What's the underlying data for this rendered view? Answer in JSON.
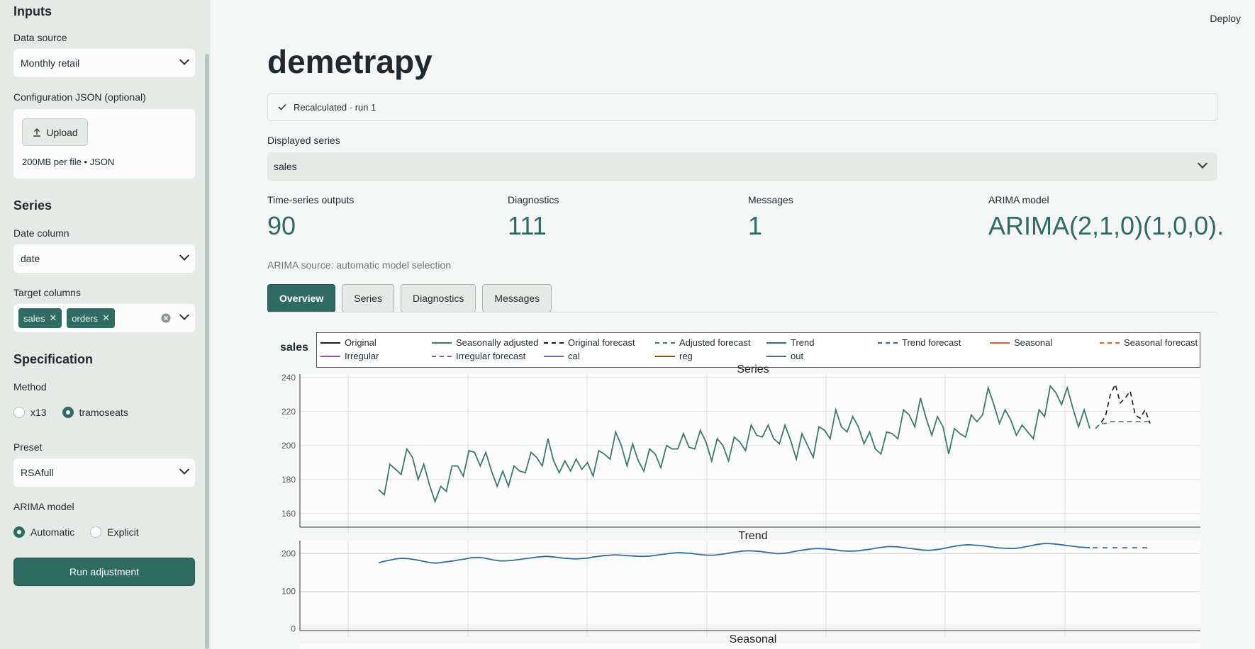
{
  "sidebar": {
    "inputs_heading": "Inputs",
    "data_source_label": "Data source",
    "data_source_value": "Monthly retail",
    "config_label": "Configuration JSON (optional)",
    "upload_label": "Upload",
    "upload_note": "200MB per file • JSON",
    "series_heading": "Series",
    "date_column_label": "Date column",
    "date_column_value": "date",
    "target_columns_label": "Target columns",
    "target_chips": [
      "sales",
      "orders"
    ],
    "spec_heading": "Specification",
    "method_label": "Method",
    "method_options": [
      "x13",
      "tramoseats"
    ],
    "method_selected": "tramoseats",
    "preset_label": "Preset",
    "preset_value": "RSAfull",
    "arima_label": "ARIMA model",
    "arima_options": [
      "Automatic",
      "Explicit"
    ],
    "arima_selected": "Automatic",
    "run_label": "Run adjustment"
  },
  "header": {
    "deploy_label": "Deploy"
  },
  "main": {
    "title": "demetrapy",
    "status_text": "Recalculated · run 1",
    "displayed_series_label": "Displayed series",
    "displayed_series_value": "sales",
    "metrics": [
      {
        "label": "Time-series outputs",
        "value": "90"
      },
      {
        "label": "Diagnostics",
        "value": "111"
      },
      {
        "label": "Messages",
        "value": "1"
      },
      {
        "label": "ARIMA model",
        "value": "ARIMA(2,1,0)(1,0,0)..."
      }
    ],
    "arima_source": "ARIMA source: automatic model selection",
    "tabs": [
      "Overview",
      "Series",
      "Diagnostics",
      "Messages"
    ],
    "active_tab": "Overview"
  },
  "colors": {
    "accent": "#2f6b62",
    "original": "#1a1a1a",
    "sa": "#3a7a6e",
    "trend": "#2e6ea6",
    "seasonal": "#d4622a",
    "irregular": "#a04fb0",
    "cal": "#7b5fc9",
    "reg": "#8a5a1a",
    "out": "#4a6a7a"
  },
  "chart_data": [
    {
      "type": "line",
      "series_label": "sales",
      "title": "Series",
      "legend": [
        "Original",
        "Seasonally adjusted",
        "Original forecast",
        "Adjusted forecast",
        "Trend",
        "Trend forecast",
        "Seasonal",
        "Seasonal forecast",
        "Irregular",
        "Irregular forecast",
        "cal",
        "reg",
        "out"
      ],
      "ylim": [
        152,
        242
      ],
      "yticks": [
        160,
        180,
        200,
        220,
        240
      ],
      "series": [
        {
          "name": "Seasonally adjusted",
          "values": [
            174,
            171,
            189,
            186,
            183,
            198,
            193,
            180,
            189,
            177,
            167,
            176,
            173,
            188,
            188,
            182,
            197,
            196,
            188,
            196,
            185,
            176,
            185,
            176,
            188,
            185,
            184,
            196,
            193,
            188,
            204,
            191,
            184,
            191,
            185,
            192,
            186,
            190,
            182,
            197,
            195,
            192,
            208,
            200,
            188,
            201,
            191,
            185,
            198,
            195,
            187,
            200,
            198,
            198,
            207,
            199,
            198,
            209,
            202,
            191,
            204,
            200,
            191,
            205,
            202,
            197,
            212,
            206,
            205,
            212,
            204,
            201,
            212,
            203,
            192,
            207,
            200,
            193,
            211,
            209,
            204,
            221,
            211,
            208,
            217,
            211,
            201,
            208,
            198,
            195,
            208,
            207,
            204,
            221,
            218,
            211,
            228,
            216,
            206,
            217,
            211,
            195,
            210,
            207,
            205,
            218,
            214,
            218,
            234,
            224,
            213,
            221,
            215,
            206,
            212,
            208,
            204,
            221,
            217,
            235,
            231,
            224,
            234,
            222,
            211,
            221,
            210
          ]
        },
        {
          "name": "Original forecast",
          "values": [
            210,
            213,
            217,
            230,
            236,
            225,
            228,
            232,
            218,
            216,
            221,
            213
          ]
        },
        {
          "name": "Adjusted forecast",
          "values": [
            210,
            213,
            213,
            214,
            214,
            214,
            214,
            214,
            214,
            214,
            214,
            214
          ]
        }
      ]
    },
    {
      "type": "line",
      "title": "Trend",
      "ylim": [
        -5,
        235
      ],
      "yticks": [
        0,
        100,
        200
      ],
      "series": [
        {
          "name": "Trend",
          "values": [
            176,
            180,
            183,
            186,
            188,
            187,
            185,
            182,
            179,
            176,
            175,
            177,
            179,
            181,
            184,
            186,
            189,
            190,
            189,
            186,
            183,
            181,
            181,
            182,
            184,
            186,
            188,
            190,
            192,
            193,
            192,
            190,
            188,
            187,
            186,
            187,
            188,
            191,
            193,
            195,
            196,
            197,
            196,
            195,
            194,
            193,
            193,
            194,
            196,
            198,
            200,
            202,
            203,
            202,
            201,
            199,
            197,
            196,
            196,
            198,
            200,
            203,
            205,
            207,
            208,
            207,
            206,
            204,
            202,
            200,
            201,
            203,
            206,
            209,
            211,
            213,
            214,
            213,
            212,
            210,
            208,
            207,
            207,
            208,
            210,
            212,
            215,
            217,
            219,
            219,
            218,
            216,
            214,
            212,
            210,
            209,
            210,
            212,
            215,
            218,
            221,
            223,
            224,
            223,
            222,
            220,
            218,
            216,
            215,
            214,
            214,
            216,
            219,
            222,
            225,
            227,
            227,
            226,
            224,
            222,
            220,
            218,
            217,
            216
          ]
        },
        {
          "name": "Trend forecast",
          "values": [
            216,
            216,
            216,
            216,
            216,
            216,
            216,
            216,
            216,
            216,
            216,
            216
          ]
        }
      ]
    },
    {
      "type": "line",
      "title": "Seasonal"
    }
  ]
}
